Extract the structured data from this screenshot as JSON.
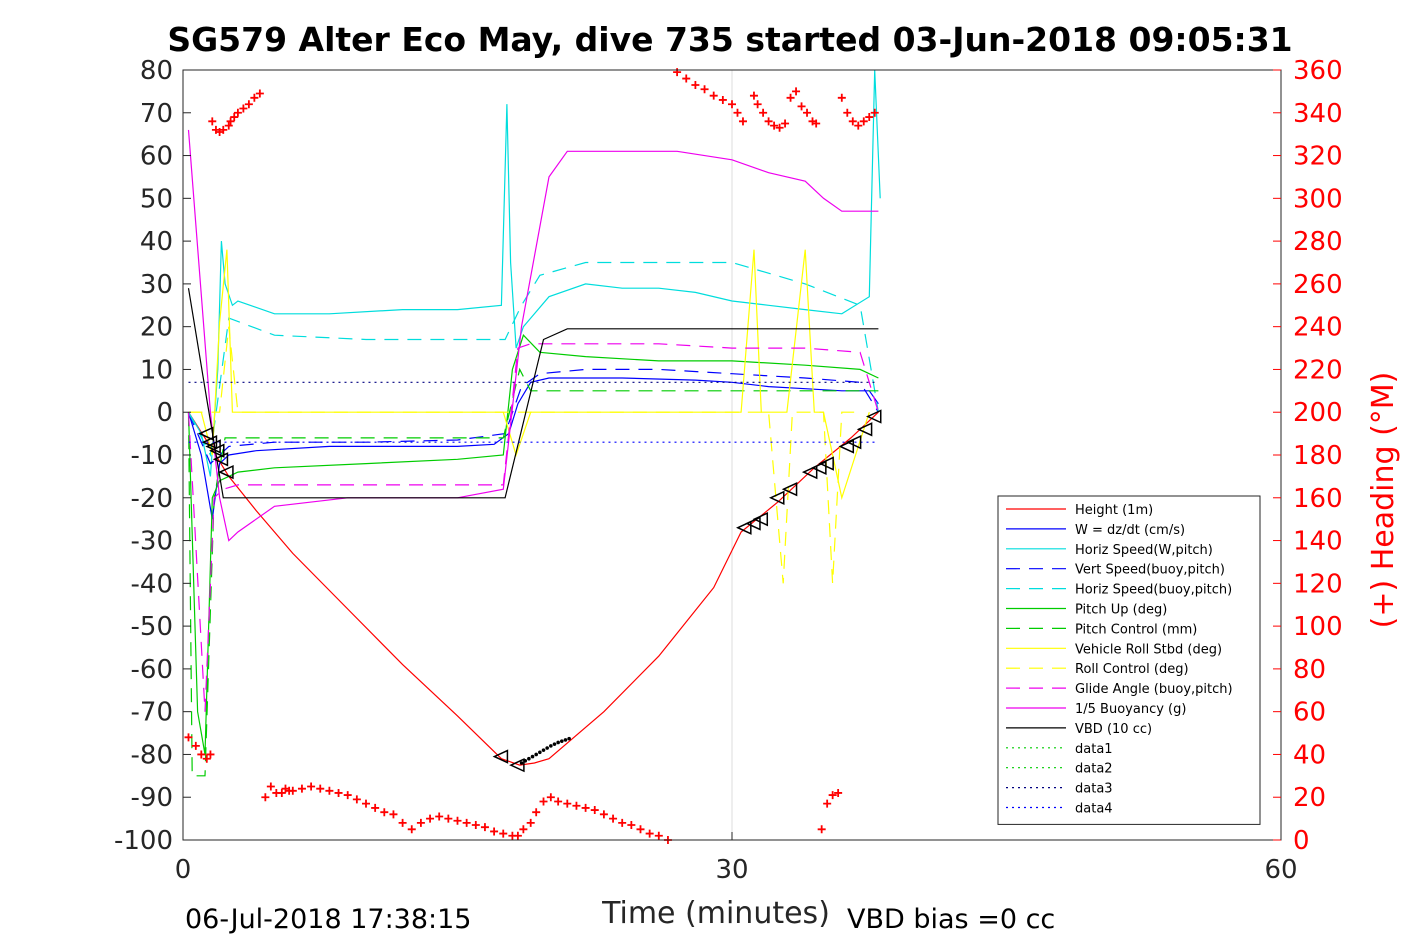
{
  "chart_data": {
    "type": "line",
    "title": "SG579 Alter Eco May, dive 735 started 03-Jun-2018 09:05:31",
    "xlabel": "Time (minutes)",
    "ylabel_right": "(+) Heading (°M)",
    "xlim": [
      0,
      60
    ],
    "ylim": [
      -100,
      80
    ],
    "y2lim": [
      0,
      360
    ],
    "x_ticks": [
      "0",
      "30",
      "60"
    ],
    "y_ticks": [
      "80",
      "70",
      "60",
      "50",
      "40",
      "30",
      "20",
      "10",
      "0",
      "-10",
      "-20",
      "-30",
      "-40",
      "-50",
      "-60",
      "-70",
      "-80",
      "-90",
      "-100"
    ],
    "y2_ticks": [
      "360",
      "340",
      "320",
      "300",
      "280",
      "260",
      "240",
      "220",
      "200",
      "180",
      "160",
      "140",
      "120",
      "100",
      "80",
      "60",
      "40",
      "20",
      "0"
    ],
    "grid": "x-only",
    "legend_position": "lower-right",
    "footer_left": "06-Jul-2018 17:38:15",
    "footer_right": "VBD bias =0 cc",
    "series": [
      {
        "name": "Height (1m)",
        "color": "#ff0000",
        "style": "solid",
        "x": [
          0.3,
          1.5,
          2.5,
          4,
          6,
          9,
          12,
          15,
          17.4,
          18.4,
          19.2,
          20,
          23,
          26,
          29,
          30.5,
          32.5,
          34.5,
          36.5,
          38
        ],
        "y": [
          0,
          -8,
          -15,
          -23,
          -33,
          -46,
          -59,
          -71,
          -81,
          -82.5,
          -82,
          -81,
          -70,
          -57,
          -41,
          -28,
          -21,
          -13,
          -6,
          0
        ]
      },
      {
        "name": "W = dz/dt (cm/s)",
        "color": "#0000ff",
        "style": "solid",
        "x": [
          0.3,
          1,
          1.6,
          2,
          2.5,
          4,
          8,
          12,
          15,
          17,
          17.8,
          18.3,
          19,
          20,
          24,
          28,
          30,
          32,
          34,
          36,
          37.5,
          38
        ],
        "y": [
          0,
          -10,
          -25,
          -12,
          -10,
          -9,
          -8,
          -8,
          -8,
          -7.5,
          -5,
          2,
          7,
          8,
          8,
          7.5,
          7,
          6,
          5.5,
          5,
          5,
          2
        ]
      },
      {
        "name": "Horiz Speed(W,pitch)",
        "color": "#00dddd",
        "style": "solid",
        "x": [
          0.3,
          1,
          1.5,
          1.9,
          2.1,
          2.3,
          2.7,
          3,
          5,
          8,
          12,
          15,
          17.4,
          17.7,
          17.9,
          18.2,
          18.6,
          19,
          20,
          22,
          24,
          26,
          28,
          30,
          32,
          34,
          36,
          37.5,
          37.8,
          38.1
        ],
        "y": [
          0,
          -5,
          -15,
          10,
          40,
          30,
          25,
          26,
          23,
          23,
          24,
          24,
          25,
          72,
          35,
          15,
          20,
          22,
          27,
          30,
          29,
          29,
          28,
          26,
          25,
          24,
          23,
          27,
          80,
          50
        ]
      },
      {
        "name": "Vert Speed(buoy,pitch)",
        "color": "#0000ff",
        "style": "dashed",
        "x": [
          0.3,
          1.5,
          2.5,
          5,
          10,
          15,
          17.6,
          18.5,
          19.5,
          22,
          26,
          30,
          34,
          37,
          38
        ],
        "y": [
          0,
          -12,
          -8,
          -7,
          -7,
          -6.5,
          -5,
          6,
          9,
          10,
          10,
          9,
          8,
          7,
          0
        ]
      },
      {
        "name": "Horiz Speed(buoy,pitch)",
        "color": "#00dddd",
        "style": "dashed",
        "x": [
          0.3,
          1.5,
          2.5,
          5,
          10,
          15,
          17.6,
          18.5,
          19.5,
          22,
          26,
          30,
          34,
          37,
          38
        ],
        "y": [
          0,
          -10,
          22,
          18,
          17,
          17,
          17,
          25,
          32,
          35,
          35,
          35,
          30,
          25,
          0
        ]
      },
      {
        "name": "Pitch Up (deg)",
        "color": "#00cc00",
        "style": "solid",
        "x": [
          0.3,
          0.8,
          1.2,
          1.6,
          2,
          2.5,
          3,
          5,
          10,
          15,
          17.5,
          18,
          18.6,
          19.5,
          22,
          26,
          30,
          34,
          37,
          38
        ],
        "y": [
          0,
          -70,
          -80,
          -20,
          -16,
          -15,
          -14,
          -13,
          -12,
          -11,
          -10,
          10,
          18,
          14,
          13,
          12,
          12,
          11,
          10,
          8
        ]
      },
      {
        "name": "Pitch Control (mm)",
        "color": "#00cc00",
        "style": "dashed",
        "x": [
          0.3,
          0.5,
          1.2,
          1.7,
          2.3,
          5,
          10,
          15,
          17.5,
          18.4,
          19,
          22,
          26,
          30,
          35,
          38
        ],
        "y": [
          0,
          -85,
          -85,
          -20,
          -6,
          -6,
          -6,
          -6,
          -6,
          10,
          5,
          5,
          5,
          5,
          5,
          5
        ]
      },
      {
        "name": "Vehicle Roll Stbd (deg)",
        "color": "#ffff00",
        "style": "solid",
        "x": [
          0.3,
          1,
          1.6,
          2,
          2.4,
          2.7,
          3,
          10,
          17.5,
          18.2,
          19,
          30,
          30.5,
          31.2,
          31.6,
          33,
          34,
          34.5,
          35,
          36,
          37.5
        ],
        "y": [
          0,
          0,
          -10,
          21,
          38,
          0,
          0,
          0,
          0,
          -10,
          0,
          0,
          0,
          38,
          0,
          0,
          38,
          0,
          0,
          -20,
          0
        ]
      },
      {
        "name": "Roll Control (deg)",
        "color": "#ffff00",
        "style": "dashed",
        "x": [
          0.3,
          2,
          2.5,
          3,
          10,
          17.5,
          18.5,
          30,
          32,
          32.8,
          33.3,
          34,
          35,
          35.5,
          36,
          37
        ],
        "y": [
          0,
          0,
          20,
          0,
          0,
          0,
          0,
          0,
          0,
          -40,
          0,
          0,
          0,
          -40,
          0,
          0
        ]
      },
      {
        "name": "Glide Angle (buoy,pitch)",
        "color": "#ee00ee",
        "style": "dashed",
        "x": [
          0.3,
          1.2,
          1.7,
          2.2,
          3,
          5,
          10,
          15,
          17.5,
          18.3,
          19,
          22,
          26,
          30,
          34,
          37,
          38
        ],
        "y": [
          0,
          -70,
          -20,
          -18,
          -17,
          -17,
          -17,
          -17,
          -17,
          15,
          16,
          16,
          16,
          15,
          15,
          14,
          0
        ]
      },
      {
        "name": "1/5 Buoyancy (g)",
        "color": "#ee00ee",
        "style": "solid",
        "x": [
          0.3,
          1.5,
          2,
          2.5,
          3,
          5,
          9,
          15,
          17.5,
          18.5,
          20,
          21,
          24,
          27,
          30,
          32,
          34,
          35,
          36,
          37,
          38
        ],
        "y": [
          66,
          0,
          -20,
          -30,
          -28,
          -22,
          -20,
          -20,
          -18,
          20,
          55,
          61,
          61,
          61,
          59,
          56,
          54,
          50,
          47,
          47,
          47
        ]
      },
      {
        "name": "VBD (10 cc)",
        "color": "#000000",
        "style": "solid",
        "x": [
          0.3,
          1.3,
          2.2,
          5,
          10,
          15,
          17.6,
          19.7,
          21,
          25,
          30,
          35,
          38
        ],
        "y": [
          29,
          3,
          -20,
          -20,
          -20,
          -20,
          -20,
          17,
          19.5,
          19.5,
          19.5,
          19.5,
          19.5
        ]
      },
      {
        "name": "data1",
        "color": "#00cc00",
        "style": "dotted",
        "x": [],
        "y": []
      },
      {
        "name": "data2",
        "color": "#00cc00",
        "style": "dotted",
        "x": [],
        "y": []
      },
      {
        "name": "data3",
        "color": "#000080",
        "style": "dotted",
        "x": [
          0.3,
          38
        ],
        "y": [
          7,
          7
        ]
      },
      {
        "name": "data4",
        "color": "#0000ff",
        "style": "dotted",
        "x": [
          0.3,
          38
        ],
        "y": [
          -7,
          -7
        ]
      }
    ],
    "heading_points": {
      "name": "Heading",
      "axis": "right",
      "color": "#ff0000",
      "marker": "+",
      "x": [
        0.3,
        0.7,
        1.0,
        1.3,
        1.5,
        1.6,
        1.8,
        2.0,
        2.2,
        2.5,
        2.6,
        2.8,
        3.0,
        3.3,
        3.6,
        3.9,
        4.2,
        4.5,
        4.8,
        5.1,
        5.4,
        5.6,
        5.8,
        6.0,
        6.5,
        7,
        7.5,
        8,
        8.5,
        9,
        9.5,
        10,
        10.5,
        11,
        11.5,
        12,
        12.5,
        13,
        13.5,
        14,
        14.5,
        15,
        15.5,
        16,
        16.5,
        17,
        17.5,
        18,
        18.3,
        18.6,
        19,
        19.3,
        19.7,
        20.1,
        20.5,
        21,
        21.5,
        22,
        22.5,
        23,
        23.5,
        24,
        24.5,
        25,
        25.5,
        26,
        26.5,
        27,
        27.5,
        28,
        28.5,
        29,
        29.5,
        30,
        30.3,
        30.6,
        31.2,
        31.4,
        31.7,
        32,
        32.3,
        32.6,
        32.9,
        33.2,
        33.5,
        33.8,
        34.1,
        34.4,
        34.6,
        34.9,
        35.2,
        35.5,
        35.8,
        36,
        36.3,
        36.6,
        36.9,
        37.2,
        37.5,
        37.8
      ],
      "y": [
        48,
        44,
        40,
        38,
        40,
        336,
        332,
        331,
        332,
        334,
        336,
        338,
        340,
        342,
        344,
        347,
        349,
        20,
        25,
        22,
        22,
        24,
        23,
        23,
        24,
        25,
        24,
        23,
        22,
        21,
        19,
        17,
        15,
        13,
        12,
        8,
        5,
        8,
        10,
        11,
        10,
        9,
        8,
        7,
        6,
        4,
        3,
        2,
        2,
        5,
        8,
        13,
        18,
        20,
        18,
        17,
        16,
        15,
        14,
        12,
        10,
        8,
        7,
        5,
        3,
        2,
        0,
        359,
        356,
        353,
        351,
        348,
        346,
        344,
        340,
        336,
        348,
        344,
        340,
        336,
        334,
        333,
        335,
        347,
        350,
        343,
        340,
        336,
        335,
        5,
        17,
        21,
        22,
        347,
        340,
        336,
        334,
        336,
        338,
        340
      ]
    },
    "triangle_points": {
      "marker": "triangle",
      "color": "#000000",
      "x": [
        1.3,
        1.5,
        1.7,
        1.9,
        2.1,
        2.4,
        17.4,
        18.3,
        30.7,
        31.2,
        31.6,
        32.5,
        33.2,
        34.3,
        34.8,
        35.2,
        36.3,
        36.7,
        37.3,
        37.8
      ],
      "y": [
        -5,
        -7,
        -8,
        -9,
        -11,
        -14,
        -80.5,
        -82.5,
        -27,
        -26,
        -25,
        -20,
        -18,
        -14,
        -13,
        -12,
        -8,
        -7,
        -4,
        -1
      ]
    },
    "small_dot_points": {
      "marker": "dot",
      "color": "#000000",
      "x": [
        18.5,
        18.7,
        18.9,
        19.1,
        19.3,
        19.5,
        19.7,
        19.9,
        20.1,
        20.3,
        20.5,
        20.7,
        20.9,
        21.1
      ],
      "y": [
        -82,
        -81.5,
        -81,
        -80.5,
        -80,
        -79.5,
        -79,
        -78.5,
        -78,
        -77.6,
        -77.2,
        -76.9,
        -76.6,
        -76.3
      ]
    }
  }
}
